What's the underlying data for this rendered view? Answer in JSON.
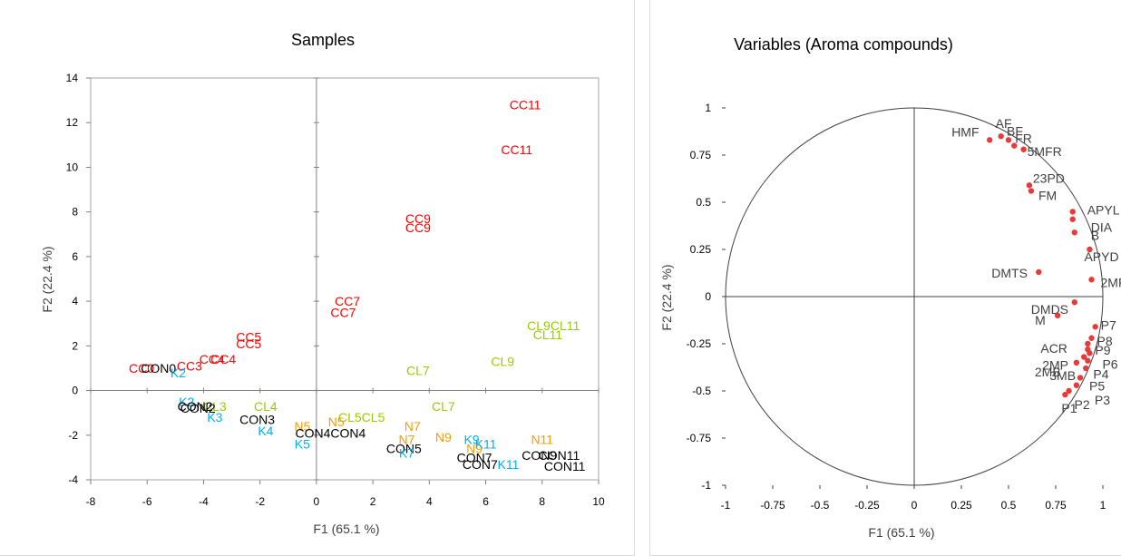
{
  "chart_data": [
    {
      "type": "scatter",
      "title": "Samples",
      "xlabel": "F1 (65.1 %)",
      "ylabel": "F2 (22.4 %)",
      "xlim": [
        -8,
        10
      ],
      "ylim": [
        -4,
        14
      ],
      "xticks": [
        -8,
        -6,
        -4,
        -2,
        0,
        2,
        4,
        6,
        8,
        10
      ],
      "yticks": [
        -4,
        -2,
        0,
        2,
        4,
        6,
        8,
        10,
        12,
        14
      ],
      "colors": {
        "CC": "#ff0000",
        "CL": "#99cc00",
        "N": "#ff9900",
        "K": "#00b0f0",
        "CON": "#000000"
      },
      "points": [
        {
          "label": "CC11",
          "group": "CC",
          "x": 7.4,
          "y": 12.8
        },
        {
          "label": "CC11",
          "group": "CC",
          "x": 7.1,
          "y": 10.8
        },
        {
          "label": "CC9",
          "group": "CC",
          "x": 3.6,
          "y": 7.7
        },
        {
          "label": "CC9",
          "group": "CC",
          "x": 3.6,
          "y": 7.3
        },
        {
          "label": "CC7",
          "group": "CC",
          "x": 1.1,
          "y": 4.0
        },
        {
          "label": "CC7",
          "group": "CC",
          "x": 0.95,
          "y": 3.5
        },
        {
          "label": "CC5",
          "group": "CC",
          "x": -2.4,
          "y": 2.4
        },
        {
          "label": "CC5",
          "group": "CC",
          "x": -2.4,
          "y": 2.1
        },
        {
          "label": "CC4",
          "group": "CC",
          "x": -3.3,
          "y": 1.4
        },
        {
          "label": "CC4",
          "group": "CC",
          "x": -3.7,
          "y": 1.4
        },
        {
          "label": "CC3",
          "group": "CC",
          "x": -4.5,
          "y": 1.1
        },
        {
          "label": "CC0",
          "group": "CC",
          "x": -6.2,
          "y": 1.0
        },
        {
          "label": "CON0",
          "group": "CON",
          "x": -5.6,
          "y": 1.0
        },
        {
          "label": "K2",
          "group": "K",
          "x": -4.9,
          "y": 0.8
        },
        {
          "label": "CL9CL11",
          "group": "CL",
          "x": 8.4,
          "y": 2.9
        },
        {
          "label": "CL11",
          "group": "CL",
          "x": 8.2,
          "y": 2.5
        },
        {
          "label": "CL9",
          "group": "CL",
          "x": 6.6,
          "y": 1.3
        },
        {
          "label": "CL7",
          "group": "CL",
          "x": 3.6,
          "y": 0.9
        },
        {
          "label": "CL7",
          "group": "CL",
          "x": 4.5,
          "y": -0.7
        },
        {
          "label": "CL5CL5",
          "group": "CL",
          "x": 1.6,
          "y": -1.2
        },
        {
          "label": "CL3",
          "group": "CL",
          "x": -3.6,
          "y": -0.7
        },
        {
          "label": "CL4",
          "group": "CL",
          "x": -1.8,
          "y": -0.7
        },
        {
          "label": "K2",
          "group": "K",
          "x": -4.6,
          "y": -0.5
        },
        {
          "label": "CON2",
          "group": "CON",
          "x": -4.3,
          "y": -0.7
        },
        {
          "label": "CON2",
          "group": "CON",
          "x": -4.2,
          "y": -0.8
        },
        {
          "label": "K3",
          "group": "K",
          "x": -3.6,
          "y": -1.2
        },
        {
          "label": "CON3",
          "group": "CON",
          "x": -2.1,
          "y": -1.3
        },
        {
          "label": "K4",
          "group": "K",
          "x": -1.8,
          "y": -1.8
        },
        {
          "label": "N5",
          "group": "N",
          "x": -0.5,
          "y": -1.6
        },
        {
          "label": "CON4CON4",
          "group": "CON",
          "x": 0.5,
          "y": -1.9
        },
        {
          "label": "K5",
          "group": "K",
          "x": -0.5,
          "y": -2.4
        },
        {
          "label": "N5",
          "group": "N",
          "x": 0.7,
          "y": -1.4
        },
        {
          "label": "N7",
          "group": "N",
          "x": 3.4,
          "y": -1.6
        },
        {
          "label": "N7",
          "group": "N",
          "x": 3.2,
          "y": -2.2
        },
        {
          "label": "CON5",
          "group": "CON",
          "x": 3.1,
          "y": -2.6
        },
        {
          "label": "K7",
          "group": "K",
          "x": 3.2,
          "y": -2.8
        },
        {
          "label": "N9",
          "group": "N",
          "x": 4.5,
          "y": -2.1
        },
        {
          "label": "K9",
          "group": "K",
          "x": 5.5,
          "y": -2.2
        },
        {
          "label": "N9",
          "group": "N",
          "x": 5.6,
          "y": -2.6
        },
        {
          "label": "K11",
          "group": "K",
          "x": 6.0,
          "y": -2.4
        },
        {
          "label": "CON7",
          "group": "CON",
          "x": 5.6,
          "y": -3.0
        },
        {
          "label": "CON7",
          "group": "CON",
          "x": 5.8,
          "y": -3.3
        },
        {
          "label": "K11",
          "group": "K",
          "x": 6.8,
          "y": -3.3
        },
        {
          "label": "N11",
          "group": "N",
          "x": 8.0,
          "y": -2.2
        },
        {
          "label": "CON9",
          "group": "CON",
          "x": 7.9,
          "y": -2.9
        },
        {
          "label": "CON11",
          "group": "CON",
          "x": 8.6,
          "y": -2.9
        },
        {
          "label": "CON11",
          "group": "CON",
          "x": 8.8,
          "y": -3.4
        }
      ]
    },
    {
      "type": "scatter",
      "title": "Variables (Aroma compounds)",
      "xlabel": "F1 (65.1 %)",
      "ylabel": "F2 (22.4 %)",
      "xlim": [
        -1,
        1
      ],
      "ylim": [
        -1,
        1
      ],
      "xticks": [
        -1,
        -0.75,
        -0.5,
        -0.25,
        0,
        0.25,
        0.5,
        0.75,
        1
      ],
      "yticks": [
        -1,
        -0.75,
        -0.5,
        -0.25,
        0,
        0.25,
        0.5,
        0.75,
        1
      ],
      "xtick_labels": [
        "-1",
        "-0.75",
        "-0.5",
        "-0.25",
        "0",
        "0.25",
        "0.5",
        "0.75",
        "1"
      ],
      "ytick_labels": [
        "-1",
        "-0.75",
        "-0.5",
        "-0.25",
        "0",
        "0.25",
        "0.5",
        "0.75",
        "1"
      ],
      "correlation_circle": true,
      "point_color": "#e83a3a",
      "points": [
        {
          "label": "HMF",
          "x": 0.4,
          "y": 0.83
        },
        {
          "label": "AF",
          "x": 0.46,
          "y": 0.85
        },
        {
          "label": "BF",
          "x": 0.5,
          "y": 0.83
        },
        {
          "label": "FR",
          "x": 0.53,
          "y": 0.8
        },
        {
          "label": "5MFR",
          "x": 0.58,
          "y": 0.78
        },
        {
          "label": "23PD",
          "x": 0.61,
          "y": 0.59
        },
        {
          "label": "FM",
          "x": 0.62,
          "y": 0.56
        },
        {
          "label": "APYL",
          "x": 0.84,
          "y": 0.45
        },
        {
          "label": "DIA",
          "x": 0.84,
          "y": 0.41
        },
        {
          "label": "B",
          "x": 0.85,
          "y": 0.34
        },
        {
          "label": "APYD",
          "x": 0.93,
          "y": 0.25
        },
        {
          "label": "DMTS",
          "x": 0.66,
          "y": 0.13
        },
        {
          "label": "2MF",
          "x": 0.94,
          "y": 0.09
        },
        {
          "label": "DMDS",
          "x": 0.85,
          "y": -0.03
        },
        {
          "label": "M",
          "x": 0.76,
          "y": -0.1
        },
        {
          "label": "P7",
          "x": 0.96,
          "y": -0.16
        },
        {
          "label": "P8",
          "x": 0.94,
          "y": -0.22
        },
        {
          "label": "P9",
          "x": 0.92,
          "y": -0.25
        },
        {
          "label": "ACR",
          "x": 0.92,
          "y": -0.28
        },
        {
          "label": "P6",
          "x": 0.93,
          "y": -0.3
        },
        {
          "label": "2MP",
          "x": 0.9,
          "y": -0.32
        },
        {
          "label": "P4",
          "x": 0.92,
          "y": -0.34
        },
        {
          "label": "2MB",
          "x": 0.86,
          "y": -0.35
        },
        {
          "label": "3MB",
          "x": 0.91,
          "y": -0.38
        },
        {
          "label": "P5",
          "x": 0.88,
          "y": -0.43
        },
        {
          "label": "P3",
          "x": 0.86,
          "y": -0.47
        },
        {
          "label": "P2",
          "x": 0.82,
          "y": -0.5
        },
        {
          "label": "P1",
          "x": 0.8,
          "y": -0.52
        }
      ]
    }
  ]
}
